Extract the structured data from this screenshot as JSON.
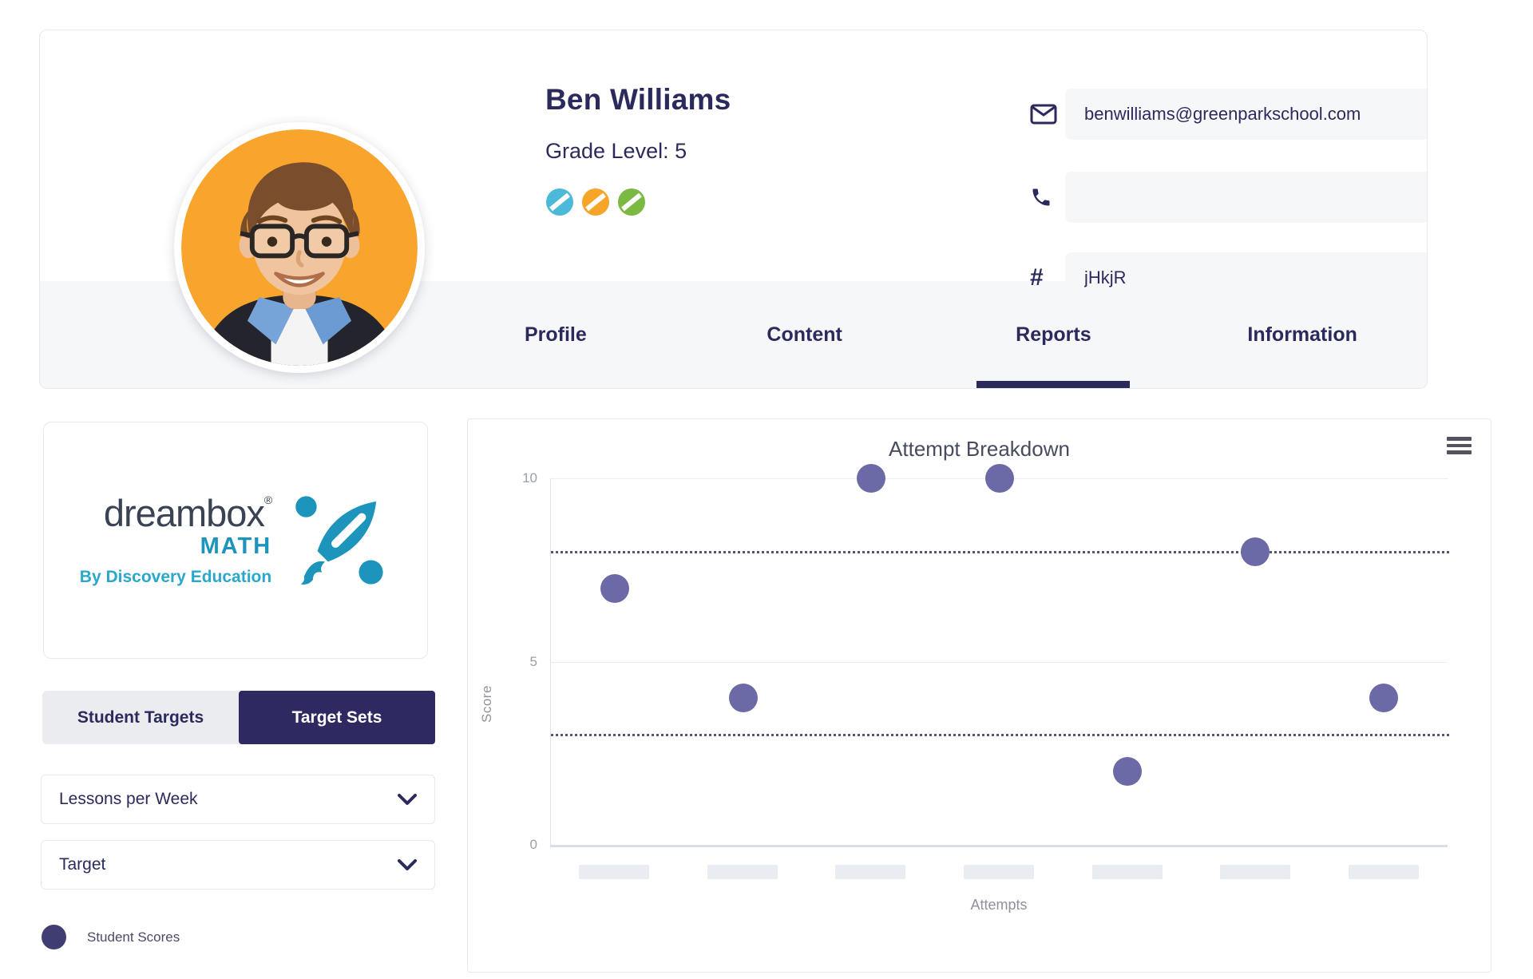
{
  "colors": {
    "navy": "#2b2a5c",
    "toggle_active_bg": "#2e2960",
    "point_fill": "#6c6aa6",
    "legend_dot": "#3f3d72",
    "brand_teal": "#1d94bb",
    "avatar_background": "#f9a42c",
    "badge_blue": "#4db9d8",
    "badge_orange": "#f7a528",
    "badge_green": "#7cb942"
  },
  "profile": {
    "name": "Ben Williams",
    "grade_label": "Grade Level: 5",
    "email": "benwilliams@greenparkschool.com",
    "phone": "",
    "student_number": "jHkjR"
  },
  "tabs": [
    {
      "label": "Profile",
      "active": false
    },
    {
      "label": "Content",
      "active": false
    },
    {
      "label": "Reports",
      "active": true
    },
    {
      "label": "Information",
      "active": false
    }
  ],
  "sidebar": {
    "logo": {
      "brand": "dreambox",
      "registered_mark": "®",
      "product": "MATH",
      "byline": "By Discovery Education"
    },
    "toggle": {
      "left_label": "Student Targets",
      "right_label": "Target Sets",
      "active": "Target Sets"
    },
    "dropdowns": [
      {
        "label": "Lessons per Week"
      },
      {
        "label": "Target"
      }
    ],
    "legend": {
      "label": "Student Scores"
    }
  },
  "chart_data": {
    "type": "scatter",
    "title": "Attempt Breakdown",
    "xlabel": "Attempts",
    "ylabel": "Score",
    "ylim": [
      0,
      10
    ],
    "yticks": [
      0,
      5,
      10
    ],
    "x": [
      1,
      2,
      3,
      4,
      5,
      6,
      7
    ],
    "x_tick_labels_redacted": true,
    "series": [
      {
        "name": "Student Scores",
        "values": [
          7,
          4,
          10,
          10,
          2,
          8,
          4
        ]
      }
    ],
    "target_lines": [
      8,
      3
    ],
    "grid": "horizontal",
    "legend_position": "outside-left-bottom"
  }
}
